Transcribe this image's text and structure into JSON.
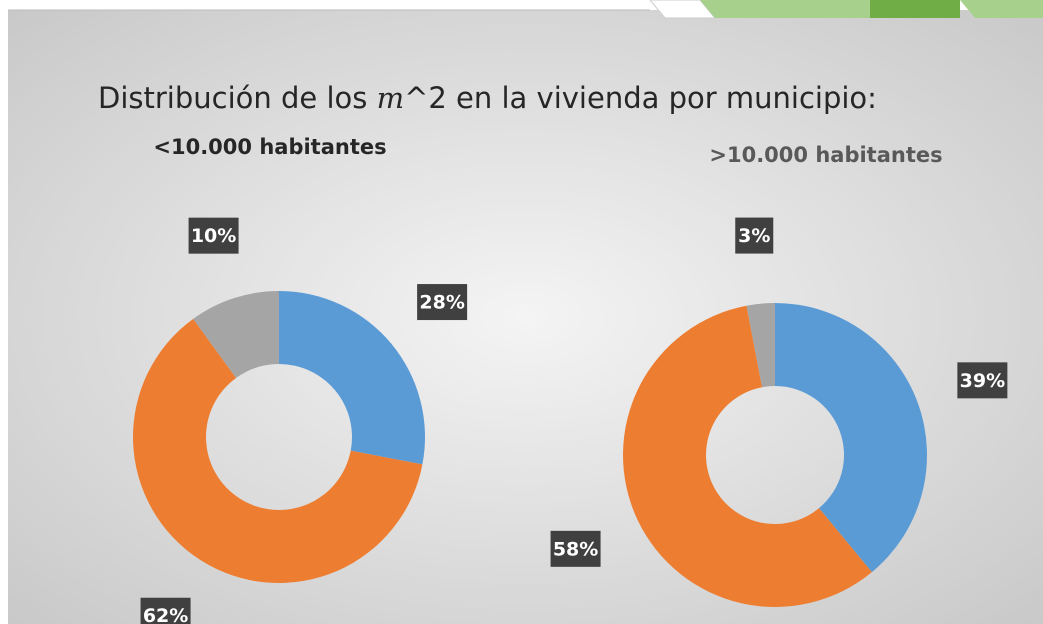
{
  "title_parts": [
    "Distribución de los ",
    "m",
    "^2 en la vivienda por municipio:"
  ],
  "chart_data": [
    {
      "type": "donut",
      "subtitle": "<10.000 habitantes",
      "values": [
        28,
        62,
        10
      ],
      "value_labels": [
        "28%",
        "62%",
        "10%"
      ],
      "colors": [
        "#5b9bd5",
        "#ed7d31",
        "#a5a5a5"
      ]
    },
    {
      "type": "donut",
      "subtitle": ">10.000 habitantes",
      "values": [
        39,
        58,
        3
      ],
      "value_labels": [
        "39%",
        "58%",
        "3%"
      ],
      "colors": [
        "#5b9bd5",
        "#ed7d31",
        "#a5a5a5"
      ]
    }
  ]
}
